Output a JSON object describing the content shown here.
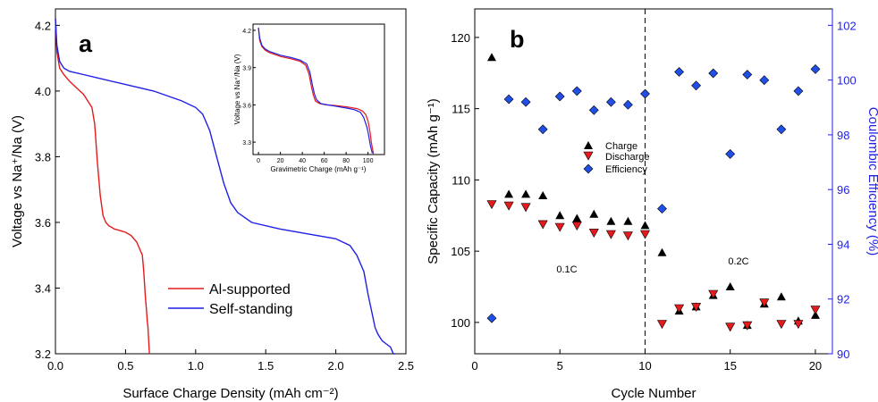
{
  "panels": {
    "a": {
      "letter": "a"
    },
    "b": {
      "letter": "b"
    }
  },
  "chart_data": [
    {
      "id": "a-main",
      "type": "line",
      "xlabel": "Surface Charge Density (mAh cm⁻²)",
      "ylabel": "Voltage vs Na⁺/Na (V)",
      "xlim": [
        0,
        2.5
      ],
      "ylim": [
        3.2,
        4.25
      ],
      "xticks": [
        "0.0",
        "0.5",
        "1.0",
        "1.5",
        "2.0",
        "2.5"
      ],
      "yticks": [
        "3.2",
        "3.4",
        "3.6",
        "3.8",
        "4.0",
        "4.2"
      ],
      "legend_position": "bottom-center",
      "series": [
        {
          "name": "Al-supported",
          "color": "#e41a1c",
          "x": [
            0,
            0.01,
            0.03,
            0.06,
            0.1,
            0.15,
            0.2,
            0.23,
            0.26,
            0.28,
            0.3,
            0.32,
            0.34,
            0.36,
            0.38,
            0.42,
            0.46,
            0.5,
            0.54,
            0.58,
            0.6,
            0.62,
            0.63,
            0.64,
            0.65,
            0.655,
            0.66,
            0.665,
            0.67
          ],
          "y": [
            4.22,
            4.12,
            4.07,
            4.05,
            4.03,
            4.01,
            3.99,
            3.97,
            3.95,
            3.9,
            3.78,
            3.68,
            3.62,
            3.6,
            3.59,
            3.58,
            3.575,
            3.57,
            3.56,
            3.54,
            3.52,
            3.5,
            3.45,
            3.38,
            3.33,
            3.3,
            3.28,
            3.24,
            3.2
          ]
        },
        {
          "name": "Self-standing",
          "color": "#1f1fe6",
          "x": [
            0,
            0.01,
            0.03,
            0.06,
            0.1,
            0.2,
            0.3,
            0.5,
            0.7,
            0.9,
            1.0,
            1.05,
            1.1,
            1.15,
            1.2,
            1.25,
            1.3,
            1.4,
            1.6,
            1.8,
            2.0,
            2.1,
            2.15,
            2.2,
            2.23,
            2.26,
            2.28,
            2.3,
            2.33,
            2.36,
            2.39,
            2.41,
            2.42
          ],
          "y": [
            4.22,
            4.14,
            4.09,
            4.07,
            4.06,
            4.05,
            4.04,
            4.02,
            4.0,
            3.97,
            3.95,
            3.93,
            3.88,
            3.8,
            3.72,
            3.66,
            3.63,
            3.6,
            3.58,
            3.565,
            3.55,
            3.53,
            3.5,
            3.45,
            3.38,
            3.32,
            3.28,
            3.26,
            3.24,
            3.23,
            3.22,
            3.2,
            3.2
          ]
        }
      ]
    },
    {
      "id": "a-inset",
      "type": "line",
      "xlabel": "Gravimetric Charge (mAh g⁻¹)",
      "ylabel": "Voltage vs Na⁺/Na (V)",
      "xlim": [
        -5,
        115
      ],
      "ylim": [
        3.2,
        4.25
      ],
      "xticks": [
        "0",
        "20",
        "40",
        "60",
        "80",
        "100"
      ],
      "yticks": [
        "3.3",
        "3.6",
        "3.9",
        "4.2"
      ],
      "series": [
        {
          "name": "Al-supported",
          "color": "#e41a1c",
          "x": [
            0,
            1,
            3,
            6,
            10,
            20,
            30,
            38,
            43,
            46,
            48,
            50,
            52,
            56,
            62,
            70,
            80,
            90,
            95,
            98,
            100,
            101,
            102,
            103,
            104,
            105
          ],
          "y": [
            4.22,
            4.12,
            4.07,
            4.04,
            4.02,
            3.99,
            3.97,
            3.95,
            3.92,
            3.85,
            3.76,
            3.68,
            3.63,
            3.61,
            3.6,
            3.595,
            3.585,
            3.57,
            3.55,
            3.52,
            3.47,
            3.42,
            3.37,
            3.3,
            3.25,
            3.2
          ]
        },
        {
          "name": "Self-standing",
          "color": "#1f1fe6",
          "x": [
            0,
            1,
            3,
            6,
            10,
            20,
            30,
            38,
            44,
            47,
            49,
            51,
            53,
            57,
            63,
            70,
            80,
            88,
            93,
            96,
            99,
            100,
            101,
            102,
            103,
            104
          ],
          "y": [
            4.22,
            4.14,
            4.08,
            4.05,
            4.03,
            4.0,
            3.98,
            3.96,
            3.93,
            3.86,
            3.77,
            3.69,
            3.64,
            3.61,
            3.6,
            3.59,
            3.575,
            3.56,
            3.54,
            3.5,
            3.42,
            3.38,
            3.33,
            3.28,
            3.24,
            3.21
          ]
        }
      ]
    },
    {
      "id": "b",
      "type": "scatter",
      "xlabel": "Cycle Number",
      "ylabel_left": "Specific Capacity (mAh g⁻¹)",
      "ylabel_right": "Coulombic Efficiency (%)",
      "xlim": [
        0,
        21
      ],
      "ylim_left": [
        97.8,
        122
      ],
      "ylim_right": [
        90,
        102.6
      ],
      "xticks": [
        "0",
        "5",
        "10",
        "15",
        "20"
      ],
      "yticks_left": [
        "100",
        "105",
        "110",
        "115",
        "120"
      ],
      "yticks_right": [
        "90",
        "92",
        "94",
        "96",
        "98",
        "100",
        "102"
      ],
      "annotations": [
        "0.1C",
        "0.2C"
      ],
      "divider_x": 10,
      "legend_position": "center-left",
      "series": [
        {
          "name": "Charge",
          "marker": "triangle-up",
          "color": "#000000",
          "axis": "left",
          "x": [
            1,
            2,
            3,
            4,
            5,
            6,
            7,
            8,
            9,
            10,
            11,
            12,
            13,
            14,
            15,
            16,
            17,
            18,
            19,
            20
          ],
          "y": [
            118.6,
            109.0,
            109.0,
            108.9,
            107.5,
            107.3,
            107.6,
            107.1,
            107.1,
            106.8,
            104.9,
            100.8,
            101.1,
            101.9,
            102.5,
            99.8,
            101.3,
            101.8,
            100.1,
            100.5
          ]
        },
        {
          "name": "Discharge",
          "marker": "triangle-down",
          "color": "#e41a1c",
          "axis": "left",
          "x": [
            1,
            2,
            3,
            4,
            5,
            6,
            7,
            8,
            9,
            10,
            11,
            12,
            13,
            14,
            15,
            16,
            17,
            18,
            19,
            20
          ],
          "y": [
            108.3,
            108.2,
            108.1,
            106.9,
            106.7,
            106.8,
            106.3,
            106.2,
            106.1,
            106.2,
            99.9,
            101.0,
            101.1,
            102.0,
            99.7,
            99.8,
            101.4,
            99.9,
            99.9,
            100.9
          ]
        },
        {
          "name": "Efficiency",
          "marker": "diamond",
          "color": "#1f4fe6",
          "axis": "right",
          "x": [
            1,
            2,
            3,
            4,
            5,
            6,
            7,
            8,
            9,
            10,
            11,
            12,
            13,
            14,
            15,
            16,
            17,
            18,
            19,
            20
          ],
          "y": [
            91.3,
            99.3,
            99.2,
            98.2,
            99.4,
            99.6,
            98.9,
            99.2,
            99.1,
            99.5,
            95.3,
            100.3,
            99.8,
            100.25,
            97.3,
            100.2,
            100.0,
            98.2,
            99.6,
            100.4
          ]
        }
      ]
    }
  ]
}
